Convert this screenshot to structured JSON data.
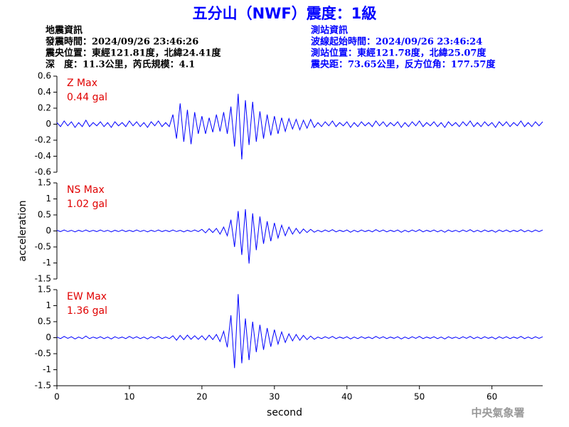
{
  "header": {
    "title": "五分山（NWF）震度：1級",
    "left": [
      "地震資訊",
      "發震時間：2024/09/26 23:46:26",
      "震央位置：東經121.81度，北緯24.41度",
      "深　度：11.3公里，芮氏規模：4.1"
    ],
    "right": [
      "測站資訊",
      "波線起始時間：2024/09/26 23:46:24",
      "測站位置：東經121.78度，北緯25.07度",
      "震央距：73.65公里，反方位角：177.57度"
    ]
  },
  "footer": "中央氣象署",
  "chart_data": [
    {
      "type": "line",
      "annotations": [
        "Z Max",
        "0.44 gal"
      ],
      "color": "#0000ff",
      "annotation_color": "#e00000",
      "xlim": [
        0,
        67
      ],
      "ylim": [
        -0.6,
        0.6
      ],
      "yticks": [
        -0.6,
        -0.4,
        -0.2,
        0,
        0.2,
        0.4,
        0.6
      ],
      "x": [
        0,
        0.5,
        1,
        1.5,
        2,
        2.5,
        3,
        3.5,
        4,
        4.5,
        5,
        5.5,
        6,
        6.5,
        7,
        7.5,
        8,
        8.5,
        9,
        9.5,
        10,
        10.5,
        11,
        11.5,
        12,
        12.5,
        13,
        13.5,
        14,
        14.5,
        15,
        15.5,
        16,
        16.5,
        17,
        17.5,
        18,
        18.5,
        19,
        19.5,
        20,
        20.5,
        21,
        21.5,
        22,
        22.5,
        23,
        23.5,
        24,
        24.5,
        25,
        25.5,
        26,
        26.5,
        27,
        27.5,
        28,
        28.5,
        29,
        29.5,
        30,
        30.5,
        31,
        31.5,
        32,
        32.5,
        33,
        33.5,
        34,
        34.5,
        35,
        35.5,
        36,
        36.5,
        37,
        37.5,
        38,
        38.5,
        39,
        39.5,
        40,
        40.5,
        41,
        41.5,
        42,
        42.5,
        43,
        43.5,
        44,
        44.5,
        45,
        45.5,
        46,
        46.5,
        47,
        47.5,
        48,
        48.5,
        49,
        49.5,
        50,
        50.5,
        51,
        51.5,
        52,
        52.5,
        53,
        53.5,
        54,
        54.5,
        55,
        55.5,
        56,
        56.5,
        57,
        57.5,
        58,
        58.5,
        59,
        59.5,
        60,
        60.5,
        61,
        61.5,
        62,
        62.5,
        63,
        63.5,
        64,
        64.5,
        65,
        65.5,
        66,
        66.5,
        67
      ],
      "values": [
        0.02,
        -0.03,
        0.04,
        -0.02,
        0.03,
        -0.04,
        0.02,
        -0.03,
        0.05,
        -0.03,
        0.02,
        -0.02,
        0.03,
        -0.03,
        0.02,
        -0.04,
        0.03,
        -0.02,
        0.02,
        -0.03,
        0.04,
        -0.02,
        0.03,
        -0.03,
        0.02,
        -0.04,
        0.03,
        -0.02,
        0.04,
        -0.03,
        0.02,
        -0.03,
        0.12,
        -0.18,
        0.26,
        -0.22,
        0.18,
        -0.25,
        0.15,
        -0.12,
        0.1,
        -0.12,
        0.08,
        -0.1,
        0.12,
        -0.09,
        0.15,
        -0.12,
        0.22,
        -0.28,
        0.38,
        -0.44,
        0.3,
        -0.26,
        0.28,
        -0.22,
        0.16,
        -0.18,
        0.12,
        -0.14,
        0.1,
        -0.12,
        0.08,
        -0.09,
        0.07,
        -0.06,
        0.06,
        -0.07,
        0.05,
        -0.05,
        0.06,
        -0.04,
        0.02,
        -0.03,
        0.03,
        -0.02,
        0.04,
        -0.03,
        0.02,
        -0.02,
        0.03,
        -0.04,
        0.02,
        -0.03,
        0.03,
        -0.02,
        0.02,
        -0.03,
        0.04,
        -0.02,
        0.03,
        -0.03,
        0.02,
        -0.02,
        0.03,
        -0.04,
        0.02,
        -0.03,
        0.03,
        -0.02,
        0.04,
        -0.03,
        0.02,
        -0.02,
        0.03,
        -0.03,
        0.02,
        -0.04,
        0.03,
        -0.02,
        0.02,
        -0.03,
        0.03,
        -0.02,
        0.04,
        -0.03,
        0.02,
        -0.03,
        0.03,
        -0.02,
        0.02,
        -0.04,
        0.03,
        -0.02,
        0.03,
        -0.03,
        0.02,
        -0.02,
        0.04,
        -0.03,
        0.02,
        -0.03,
        0.03,
        -0.02,
        0.03
      ]
    },
    {
      "type": "line",
      "annotations": [
        "NS Max",
        "1.02 gal"
      ],
      "color": "#0000ff",
      "annotation_color": "#e00000",
      "ylabel": "acceleration",
      "xlim": [
        0,
        67
      ],
      "ylim": [
        -1.5,
        1.5
      ],
      "yticks": [
        -1.5,
        -1,
        -0.5,
        0,
        0.5,
        1,
        1.5
      ],
      "x": [
        0,
        0.5,
        1,
        1.5,
        2,
        2.5,
        3,
        3.5,
        4,
        4.5,
        5,
        5.5,
        6,
        6.5,
        7,
        7.5,
        8,
        8.5,
        9,
        9.5,
        10,
        10.5,
        11,
        11.5,
        12,
        12.5,
        13,
        13.5,
        14,
        14.5,
        15,
        15.5,
        16,
        16.5,
        17,
        17.5,
        18,
        18.5,
        19,
        19.5,
        20,
        20.5,
        21,
        21.5,
        22,
        22.5,
        23,
        23.5,
        24,
        24.5,
        25,
        25.5,
        26,
        26.5,
        27,
        27.5,
        28,
        28.5,
        29,
        29.5,
        30,
        30.5,
        31,
        31.5,
        32,
        32.5,
        33,
        33.5,
        34,
        34.5,
        35,
        35.5,
        36,
        36.5,
        37,
        37.5,
        38,
        38.5,
        39,
        39.5,
        40,
        40.5,
        41,
        41.5,
        42,
        42.5,
        43,
        43.5,
        44,
        44.5,
        45,
        45.5,
        46,
        46.5,
        47,
        47.5,
        48,
        48.5,
        49,
        49.5,
        50,
        50.5,
        51,
        51.5,
        52,
        52.5,
        53,
        53.5,
        54,
        54.5,
        55,
        55.5,
        56,
        56.5,
        57,
        57.5,
        58,
        58.5,
        59,
        59.5,
        60,
        60.5,
        61,
        61.5,
        62,
        62.5,
        63,
        63.5,
        64,
        64.5,
        65,
        65.5,
        66,
        66.5,
        67
      ],
      "values": [
        0.02,
        -0.02,
        0.03,
        -0.02,
        0.02,
        -0.03,
        0.02,
        -0.02,
        0.03,
        -0.02,
        0.02,
        -0.02,
        0.03,
        -0.02,
        0.02,
        -0.03,
        0.02,
        -0.02,
        0.03,
        -0.02,
        0.02,
        -0.02,
        0.03,
        -0.02,
        0.02,
        -0.03,
        0.02,
        -0.02,
        0.03,
        -0.02,
        0.02,
        -0.02,
        0.03,
        -0.02,
        0.02,
        -0.03,
        0.02,
        -0.02,
        0.03,
        -0.02,
        0.05,
        -0.06,
        0.07,
        -0.05,
        0.08,
        -0.1,
        0.12,
        -0.15,
        0.35,
        -0.5,
        0.62,
        -0.75,
        0.68,
        -1.02,
        0.55,
        -0.6,
        0.45,
        -0.4,
        0.3,
        -0.32,
        0.25,
        -0.22,
        0.18,
        -0.15,
        0.12,
        -0.1,
        0.08,
        -0.08,
        0.06,
        -0.05,
        0.05,
        -0.04,
        0.02,
        -0.03,
        0.03,
        -0.02,
        0.04,
        -0.03,
        0.02,
        -0.02,
        0.03,
        -0.04,
        0.02,
        -0.03,
        0.03,
        -0.02,
        0.02,
        -0.03,
        0.04,
        -0.02,
        0.03,
        -0.03,
        0.02,
        -0.02,
        0.03,
        -0.04,
        0.02,
        -0.03,
        0.03,
        -0.02,
        0.04,
        -0.03,
        0.02,
        -0.02,
        0.03,
        -0.03,
        0.02,
        -0.04,
        0.03,
        -0.02,
        0.02,
        -0.03,
        0.03,
        -0.02,
        0.04,
        -0.03,
        0.02,
        -0.03,
        0.03,
        -0.02,
        0.02,
        -0.04,
        0.03,
        -0.02,
        0.03,
        -0.03,
        0.02,
        -0.02,
        0.04,
        -0.03,
        0.02,
        -0.03,
        0.03,
        -0.02,
        0.03
      ]
    },
    {
      "type": "line",
      "annotations": [
        "EW Max",
        "1.36 gal"
      ],
      "color": "#0000ff",
      "annotation_color": "#e00000",
      "xlabel": "second",
      "xlim": [
        0,
        67
      ],
      "xticks": [
        0,
        10,
        20,
        30,
        40,
        50,
        60
      ],
      "ylim": [
        -1.5,
        1.5
      ],
      "yticks": [
        -1.5,
        -1,
        -0.5,
        0,
        0.5,
        1,
        1.5
      ],
      "x": [
        0,
        0.5,
        1,
        1.5,
        2,
        2.5,
        3,
        3.5,
        4,
        4.5,
        5,
        5.5,
        6,
        6.5,
        7,
        7.5,
        8,
        8.5,
        9,
        9.5,
        10,
        10.5,
        11,
        11.5,
        12,
        12.5,
        13,
        13.5,
        14,
        14.5,
        15,
        15.5,
        16,
        16.5,
        17,
        17.5,
        18,
        18.5,
        19,
        19.5,
        20,
        20.5,
        21,
        21.5,
        22,
        22.5,
        23,
        23.5,
        24,
        24.5,
        25,
        25.5,
        26,
        26.5,
        27,
        27.5,
        28,
        28.5,
        29,
        29.5,
        30,
        30.5,
        31,
        31.5,
        32,
        32.5,
        33,
        33.5,
        34,
        34.5,
        35,
        35.5,
        36,
        36.5,
        37,
        37.5,
        38,
        38.5,
        39,
        39.5,
        40,
        40.5,
        41,
        41.5,
        42,
        42.5,
        43,
        43.5,
        44,
        44.5,
        45,
        45.5,
        46,
        46.5,
        47,
        47.5,
        48,
        48.5,
        49,
        49.5,
        50,
        50.5,
        51,
        51.5,
        52,
        52.5,
        53,
        53.5,
        54,
        54.5,
        55,
        55.5,
        56,
        56.5,
        57,
        57.5,
        58,
        58.5,
        59,
        59.5,
        60,
        60.5,
        61,
        61.5,
        62,
        62.5,
        63,
        63.5,
        64,
        64.5,
        65,
        65.5,
        66,
        66.5,
        67
      ],
      "values": [
        0.02,
        -0.03,
        0.04,
        -0.02,
        0.03,
        -0.04,
        0.02,
        -0.03,
        0.05,
        -0.03,
        0.02,
        -0.02,
        0.03,
        -0.03,
        0.02,
        -0.04,
        0.03,
        -0.02,
        0.02,
        -0.03,
        0.04,
        -0.02,
        0.03,
        -0.03,
        0.02,
        -0.04,
        0.03,
        -0.02,
        0.04,
        -0.03,
        0.02,
        -0.03,
        0.06,
        -0.08,
        0.07,
        -0.06,
        0.08,
        -0.05,
        0.06,
        -0.05,
        0.06,
        -0.07,
        0.08,
        -0.06,
        0.1,
        -0.12,
        0.2,
        -0.3,
        0.7,
        -0.95,
        1.36,
        -0.8,
        0.6,
        -0.7,
        0.5,
        -0.45,
        0.4,
        -0.38,
        0.3,
        -0.28,
        0.25,
        -0.2,
        0.18,
        -0.15,
        0.12,
        -0.1,
        0.1,
        -0.08,
        0.07,
        -0.06,
        0.05,
        -0.05,
        0.02,
        -0.03,
        0.03,
        -0.02,
        0.04,
        -0.03,
        0.02,
        -0.02,
        0.03,
        -0.04,
        0.02,
        -0.03,
        0.03,
        -0.02,
        0.02,
        -0.03,
        0.04,
        -0.02,
        0.03,
        -0.03,
        0.02,
        -0.02,
        0.03,
        -0.04,
        0.02,
        -0.03,
        0.03,
        -0.02,
        0.04,
        -0.03,
        0.02,
        -0.02,
        0.03,
        -0.03,
        0.02,
        -0.04,
        0.03,
        -0.02,
        0.02,
        -0.03,
        0.03,
        -0.02,
        0.04,
        -0.03,
        0.02,
        -0.03,
        0.03,
        -0.02,
        0.02,
        -0.04,
        0.03,
        -0.02,
        0.03,
        -0.03,
        0.02,
        -0.02,
        0.04,
        -0.03,
        0.02,
        -0.03,
        0.03,
        -0.02,
        0.03
      ]
    }
  ]
}
